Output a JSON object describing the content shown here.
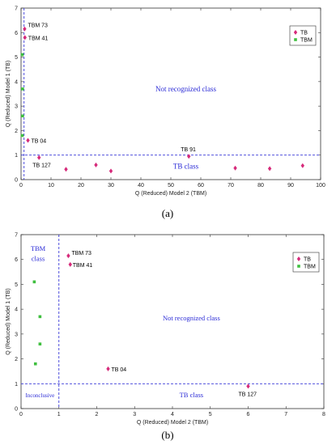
{
  "chart_data": [
    {
      "type": "scatter",
      "caption": "(a)",
      "xlabel": "Q (Reduced) Model 2 (TBM)",
      "ylabel": "Q (Reduced) Model 1 (TB)",
      "xlim": [
        0,
        100
      ],
      "ylim": [
        0,
        7
      ],
      "xticks": [
        0,
        10,
        20,
        30,
        40,
        50,
        60,
        70,
        80,
        90,
        100
      ],
      "yticks": [
        0,
        1,
        2,
        3,
        4,
        5,
        6,
        7
      ],
      "xticklabels": [
        "0",
        "10",
        "20",
        "30",
        "40",
        "50",
        "60",
        "70",
        "80",
        "90",
        "100"
      ],
      "yticklabels": [
        "0",
        "1",
        "2",
        "3",
        "4",
        "5",
        "6",
        "7"
      ],
      "threshold_x": 1,
      "threshold_y": 1,
      "legend": [
        "TB",
        "TBM"
      ],
      "legend_position": "top-right",
      "series": [
        {
          "name": "TB",
          "color": "#d62a7a",
          "marker": "diamond",
          "points": [
            {
              "x": 1.2,
              "y": 6.15,
              "label": "TBM 73"
            },
            {
              "x": 1.3,
              "y": 5.8,
              "label": "TBM 41"
            },
            {
              "x": 2.3,
              "y": 1.6,
              "label": "TB 04"
            },
            {
              "x": 6,
              "y": 0.9,
              "label": "TB 127"
            },
            {
              "x": 15,
              "y": 0.42
            },
            {
              "x": 25,
              "y": 0.6
            },
            {
              "x": 30,
              "y": 0.35
            },
            {
              "x": 56,
              "y": 0.95,
              "label": "TB 91"
            },
            {
              "x": 71.5,
              "y": 0.47
            },
            {
              "x": 83,
              "y": 0.45
            },
            {
              "x": 94,
              "y": 0.57
            }
          ]
        },
        {
          "name": "TBM",
          "color": "#3fbf3f",
          "marker": "square",
          "points": [
            {
              "x": 0.4,
              "y": 5.1
            },
            {
              "x": 0.5,
              "y": 3.7
            },
            {
              "x": 0.5,
              "y": 2.6
            },
            {
              "x": 0.4,
              "y": 1.8
            }
          ]
        }
      ],
      "regions": [
        {
          "text": "Not recognized class",
          "x": 55,
          "y": 3.6
        },
        {
          "text": "TB class",
          "x": 55,
          "y": 0.45
        }
      ]
    },
    {
      "type": "scatter",
      "caption": "(b)",
      "xlabel": "Q (Reduced) Model 2 (TBM)",
      "ylabel": "Q (Reduced) Model 1 (TB)",
      "xlim": [
        0,
        8
      ],
      "ylim": [
        0,
        7
      ],
      "xticks": [
        0,
        1,
        2,
        3,
        4,
        5,
        6,
        7,
        8
      ],
      "yticks": [
        0,
        1,
        2,
        3,
        4,
        5,
        6,
        7
      ],
      "xticklabels": [
        "0",
        "1",
        "2",
        "3",
        "4",
        "5",
        "6",
        "7",
        "8"
      ],
      "yticklabels": [
        "0",
        "1",
        "2",
        "3",
        "4",
        "5",
        "6",
        "7"
      ],
      "threshold_x": 1,
      "threshold_y": 1,
      "legend": [
        "TB",
        "TBM"
      ],
      "legend_position": "top-right",
      "series": [
        {
          "name": "TB",
          "color": "#d62a7a",
          "marker": "diamond",
          "points": [
            {
              "x": 1.25,
              "y": 6.15,
              "label": "TBM 73"
            },
            {
              "x": 1.3,
              "y": 5.8,
              "label": "TBM 41"
            },
            {
              "x": 2.3,
              "y": 1.6,
              "label": "TB 04"
            },
            {
              "x": 6,
              "y": 0.9,
              "label": "TB 127"
            }
          ]
        },
        {
          "name": "TBM",
          "color": "#3fbf3f",
          "marker": "square",
          "points": [
            {
              "x": 0.35,
              "y": 5.1
            },
            {
              "x": 0.5,
              "y": 3.7
            },
            {
              "x": 0.5,
              "y": 2.6
            },
            {
              "x": 0.38,
              "y": 1.8
            }
          ]
        }
      ],
      "regions": [
        {
          "text": "TBM",
          "x": 0.45,
          "y": 6.35
        },
        {
          "text": "class",
          "x": 0.45,
          "y": 5.95
        },
        {
          "text": "Not recognized class",
          "x": 4.5,
          "y": 3.55
        },
        {
          "text": "Inconclusive",
          "x": 0.5,
          "y": 0.45
        },
        {
          "text": "TB class",
          "x": 4.5,
          "y": 0.45
        }
      ]
    }
  ]
}
